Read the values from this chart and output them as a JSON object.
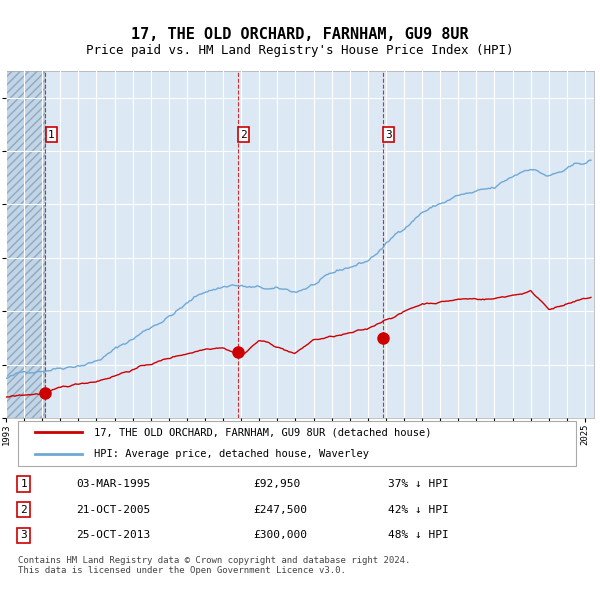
{
  "title": "17, THE OLD ORCHARD, FARNHAM, GU9 8UR",
  "subtitle": "Price paid vs. HM Land Registry's House Price Index (HPI)",
  "hpi_color": "#6fa8d4",
  "price_color": "#cc0000",
  "plot_bg_color": "#dce9f5",
  "vline_color": "#cc0000",
  "purchases": [
    {
      "date_num": 1995.17,
      "price": 92950,
      "label": "1",
      "date_str": "03-MAR-1995",
      "pct": "37% ↓ HPI"
    },
    {
      "date_num": 2005.81,
      "price": 247500,
      "label": "2",
      "date_str": "21-OCT-2005",
      "pct": "42% ↓ HPI"
    },
    {
      "date_num": 2013.81,
      "price": 300000,
      "label": "3",
      "date_str": "25-OCT-2013",
      "pct": "48% ↓ HPI"
    }
  ],
  "legend_label_red": "17, THE OLD ORCHARD, FARNHAM, GU9 8UR (detached house)",
  "legend_label_blue": "HPI: Average price, detached house, Waverley",
  "footer": "Contains HM Land Registry data © Crown copyright and database right 2024.\nThis data is licensed under the Open Government Licence v3.0.",
  "ylim": [
    0,
    1300000
  ],
  "xlim_start": 1993.0,
  "xlim_end": 2025.5,
  "hatch_end": 1995.17
}
